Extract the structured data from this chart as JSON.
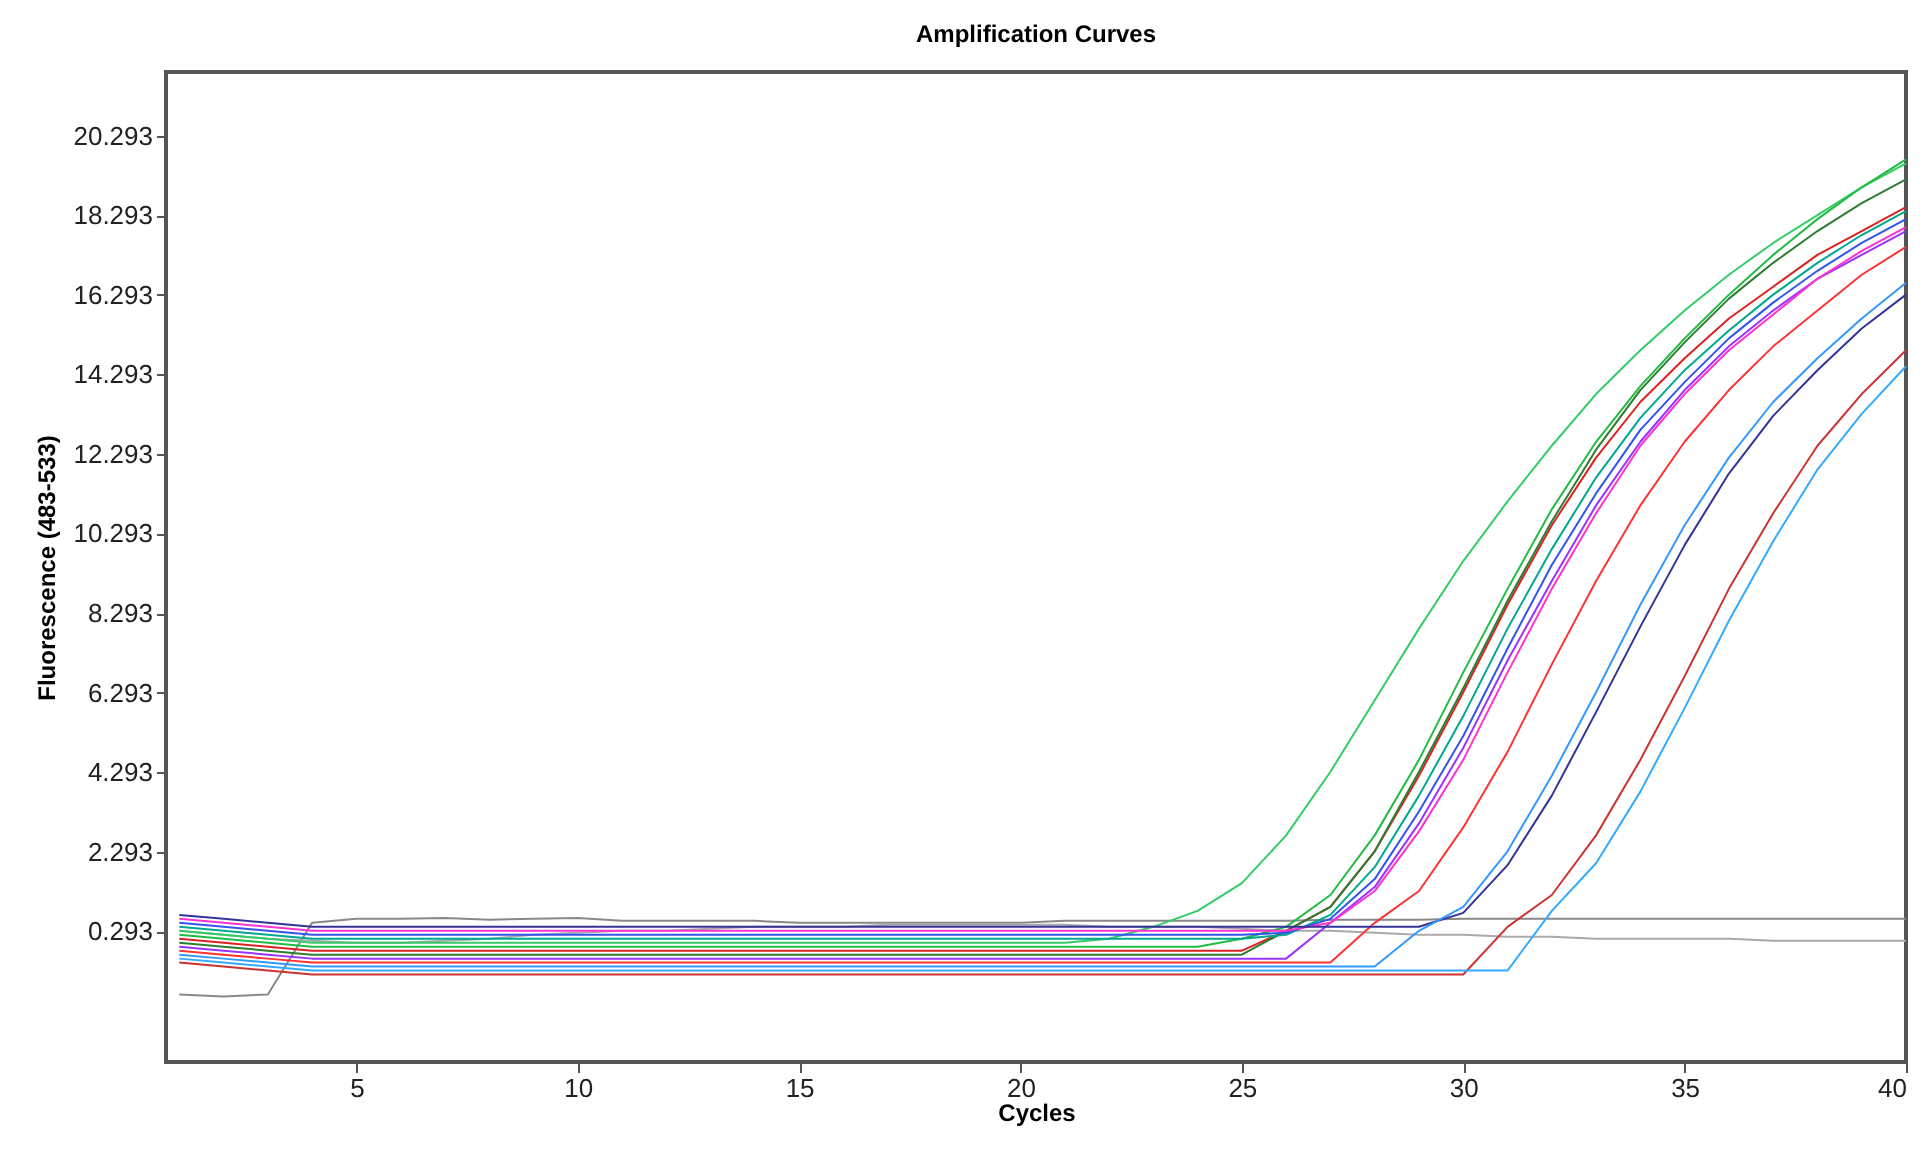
{
  "chart_data": {
    "type": "line",
    "title": "Amplification Curves",
    "xlabel": "Cycles",
    "ylabel": "Fluorescence (483-533)",
    "x": [
      1,
      2,
      3,
      4,
      5,
      6,
      7,
      8,
      9,
      10,
      11,
      12,
      13,
      14,
      15,
      16,
      17,
      18,
      19,
      20,
      21,
      22,
      23,
      24,
      25,
      26,
      27,
      28,
      29,
      30,
      31,
      32,
      33,
      34,
      35,
      36,
      37,
      38,
      39,
      40
    ],
    "xlim": [
      0.7,
      40
    ],
    "xticks": [
      5,
      10,
      15,
      20,
      25,
      30,
      35,
      40
    ],
    "ylim": [
      -3,
      21.9
    ],
    "yticks": [
      0.293,
      2.293,
      4.293,
      6.293,
      8.293,
      10.293,
      12.293,
      14.293,
      16.293,
      18.293,
      20.293
    ],
    "series": [
      {
        "color": "#888888",
        "values": [
          -1.3,
          -1.35,
          -1.3,
          0.5,
          0.6,
          0.6,
          0.62,
          0.58,
          0.6,
          0.62,
          0.55,
          0.55,
          0.55,
          0.55,
          0.5,
          0.5,
          0.5,
          0.5,
          0.5,
          0.5,
          0.55,
          0.55,
          0.55,
          0.55,
          0.55,
          0.55,
          0.58,
          0.58,
          0.58,
          0.6,
          0.6,
          0.6,
          0.6,
          0.6,
          0.6,
          0.6,
          0.6,
          0.6,
          0.6,
          0.6
        ]
      },
      {
        "color": "#aaaaaa",
        "values": [
          0.3,
          0.2,
          0.1,
          0.05,
          0.0,
          0.0,
          0.05,
          0.1,
          0.2,
          0.25,
          0.3,
          0.3,
          0.35,
          0.4,
          0.4,
          0.4,
          0.45,
          0.45,
          0.45,
          0.45,
          0.45,
          0.4,
          0.4,
          0.4,
          0.35,
          0.3,
          0.3,
          0.25,
          0.2,
          0.2,
          0.15,
          0.15,
          0.1,
          0.1,
          0.1,
          0.1,
          0.05,
          0.05,
          0.05,
          0.05
        ]
      },
      {
        "color": "#33cc66",
        "values": [
          0.3,
          0.2,
          0.1,
          0.0,
          0.0,
          0.0,
          0.0,
          0.0,
          0.0,
          0.0,
          0.0,
          0.0,
          0.0,
          0.0,
          0.0,
          0.0,
          0.0,
          0.0,
          0.0,
          0.0,
          0.0,
          0.1,
          0.4,
          0.8,
          1.5,
          2.7,
          4.3,
          6.1,
          7.9,
          9.6,
          11.1,
          12.5,
          13.8,
          14.9,
          15.9,
          16.8,
          17.6,
          18.3,
          19.0,
          19.6
        ]
      },
      {
        "color": "#22bb44",
        "values": [
          0.2,
          0.1,
          0.0,
          -0.1,
          -0.1,
          -0.1,
          -0.1,
          -0.1,
          -0.1,
          -0.1,
          -0.1,
          -0.1,
          -0.1,
          -0.1,
          -0.1,
          -0.1,
          -0.1,
          -0.1,
          -0.1,
          -0.1,
          -0.1,
          -0.1,
          -0.1,
          -0.1,
          0.1,
          0.4,
          1.2,
          2.7,
          4.6,
          6.8,
          8.9,
          10.9,
          12.6,
          14.0,
          15.2,
          16.3,
          17.3,
          18.2,
          19.0,
          19.7
        ]
      },
      {
        "color": "#dd2222",
        "values": [
          0.1,
          0.0,
          -0.1,
          -0.2,
          -0.2,
          -0.2,
          -0.2,
          -0.2,
          -0.2,
          -0.2,
          -0.2,
          -0.2,
          -0.2,
          -0.2,
          -0.2,
          -0.2,
          -0.2,
          -0.2,
          -0.2,
          -0.2,
          -0.2,
          -0.2,
          -0.2,
          -0.2,
          -0.2,
          0.3,
          0.9,
          2.3,
          4.2,
          6.3,
          8.5,
          10.5,
          12.2,
          13.6,
          14.7,
          15.7,
          16.5,
          17.3,
          17.9,
          18.5
        ]
      },
      {
        "color": "#2e7d32",
        "values": [
          0.0,
          -0.1,
          -0.2,
          -0.3,
          -0.3,
          -0.3,
          -0.3,
          -0.3,
          -0.3,
          -0.3,
          -0.3,
          -0.3,
          -0.3,
          -0.3,
          -0.3,
          -0.3,
          -0.3,
          -0.3,
          -0.3,
          -0.3,
          -0.3,
          -0.3,
          -0.3,
          -0.3,
          -0.3,
          0.3,
          0.9,
          2.3,
          4.3,
          6.4,
          8.6,
          10.6,
          12.4,
          13.9,
          15.1,
          16.2,
          17.1,
          17.9,
          18.6,
          19.2
        ]
      },
      {
        "color": "#00a88f",
        "values": [
          0.4,
          0.3,
          0.2,
          0.1,
          0.1,
          0.1,
          0.1,
          0.1,
          0.1,
          0.1,
          0.1,
          0.1,
          0.1,
          0.1,
          0.1,
          0.1,
          0.1,
          0.1,
          0.1,
          0.1,
          0.1,
          0.1,
          0.1,
          0.1,
          0.1,
          0.2,
          0.7,
          1.9,
          3.7,
          5.7,
          7.9,
          9.9,
          11.7,
          13.2,
          14.4,
          15.4,
          16.3,
          17.1,
          17.8,
          18.4
        ]
      },
      {
        "color": "#3355ee",
        "values": [
          0.5,
          0.4,
          0.3,
          0.2,
          0.2,
          0.2,
          0.2,
          0.2,
          0.2,
          0.2,
          0.2,
          0.2,
          0.2,
          0.2,
          0.2,
          0.2,
          0.2,
          0.2,
          0.2,
          0.2,
          0.2,
          0.2,
          0.2,
          0.2,
          0.2,
          0.25,
          0.6,
          1.6,
          3.3,
          5.2,
          7.4,
          9.5,
          11.3,
          12.9,
          14.1,
          15.2,
          16.1,
          16.9,
          17.6,
          18.2
        ]
      },
      {
        "color": "#9933ff",
        "values": [
          -0.1,
          -0.2,
          -0.3,
          -0.4,
          -0.4,
          -0.4,
          -0.4,
          -0.4,
          -0.4,
          -0.4,
          -0.4,
          -0.4,
          -0.4,
          -0.4,
          -0.4,
          -0.4,
          -0.4,
          -0.4,
          -0.4,
          -0.4,
          -0.4,
          -0.4,
          -0.4,
          -0.4,
          -0.4,
          -0.4,
          0.5,
          1.4,
          3.0,
          4.9,
          7.1,
          9.1,
          11.0,
          12.6,
          13.9,
          15.0,
          15.9,
          16.7,
          17.3,
          17.9
        ]
      },
      {
        "color": "#ff33cc",
        "values": [
          0.6,
          0.5,
          0.4,
          0.3,
          0.3,
          0.3,
          0.3,
          0.3,
          0.3,
          0.3,
          0.3,
          0.3,
          0.3,
          0.3,
          0.3,
          0.3,
          0.3,
          0.3,
          0.3,
          0.3,
          0.3,
          0.3,
          0.3,
          0.3,
          0.3,
          0.3,
          0.5,
          1.3,
          2.8,
          4.6,
          6.8,
          8.9,
          10.8,
          12.5,
          13.8,
          14.9,
          15.8,
          16.7,
          17.4,
          18.0
        ]
      },
      {
        "color": "#ff3333",
        "values": [
          -0.2,
          -0.3,
          -0.4,
          -0.5,
          -0.5,
          -0.5,
          -0.5,
          -0.5,
          -0.5,
          -0.5,
          -0.5,
          -0.5,
          -0.5,
          -0.5,
          -0.5,
          -0.5,
          -0.5,
          -0.5,
          -0.5,
          -0.5,
          -0.5,
          -0.5,
          -0.5,
          -0.5,
          -0.5,
          -0.5,
          -0.5,
          0.5,
          1.3,
          2.9,
          4.8,
          7.0,
          9.1,
          11.0,
          12.6,
          13.9,
          15.0,
          15.9,
          16.8,
          17.5
        ]
      },
      {
        "color": "#333399",
        "values": [
          0.7,
          0.6,
          0.5,
          0.4,
          0.4,
          0.4,
          0.4,
          0.4,
          0.4,
          0.4,
          0.4,
          0.4,
          0.4,
          0.4,
          0.4,
          0.4,
          0.4,
          0.4,
          0.4,
          0.4,
          0.4,
          0.4,
          0.4,
          0.4,
          0.4,
          0.4,
          0.4,
          0.4,
          0.4,
          0.75,
          1.95,
          3.7,
          5.8,
          7.95,
          10.0,
          11.8,
          13.25,
          14.4,
          15.45,
          16.3
        ]
      },
      {
        "color": "#3399ff",
        "values": [
          -0.3,
          -0.4,
          -0.5,
          -0.6,
          -0.6,
          -0.6,
          -0.6,
          -0.6,
          -0.6,
          -0.6,
          -0.6,
          -0.6,
          -0.6,
          -0.6,
          -0.6,
          -0.6,
          -0.6,
          -0.6,
          -0.6,
          -0.6,
          -0.6,
          -0.6,
          -0.6,
          -0.6,
          -0.6,
          -0.6,
          -0.6,
          -0.6,
          0.3,
          0.9,
          2.3,
          4.2,
          6.3,
          8.5,
          10.5,
          12.2,
          13.6,
          14.7,
          15.7,
          16.6
        ]
      },
      {
        "color": "#cc3333",
        "values": [
          -0.5,
          -0.6,
          -0.7,
          -0.8,
          -0.8,
          -0.8,
          -0.8,
          -0.8,
          -0.8,
          -0.8,
          -0.8,
          -0.8,
          -0.8,
          -0.8,
          -0.8,
          -0.8,
          -0.8,
          -0.8,
          -0.8,
          -0.8,
          -0.8,
          -0.8,
          -0.8,
          -0.8,
          -0.8,
          -0.8,
          -0.8,
          -0.8,
          -0.8,
          -0.8,
          0.4,
          1.2,
          2.7,
          4.6,
          6.7,
          8.9,
          10.8,
          12.5,
          13.8,
          14.9
        ]
      },
      {
        "color": "#33aaff",
        "values": [
          -0.4,
          -0.5,
          -0.6,
          -0.7,
          -0.7,
          -0.7,
          -0.7,
          -0.7,
          -0.7,
          -0.7,
          -0.7,
          -0.7,
          -0.7,
          -0.7,
          -0.7,
          -0.7,
          -0.7,
          -0.7,
          -0.7,
          -0.7,
          -0.7,
          -0.7,
          -0.7,
          -0.7,
          -0.7,
          -0.7,
          -0.7,
          -0.7,
          -0.7,
          -0.7,
          -0.7,
          0.8,
          2.0,
          3.8,
          5.9,
          8.1,
          10.1,
          11.9,
          13.3,
          14.5
        ]
      }
    ]
  }
}
